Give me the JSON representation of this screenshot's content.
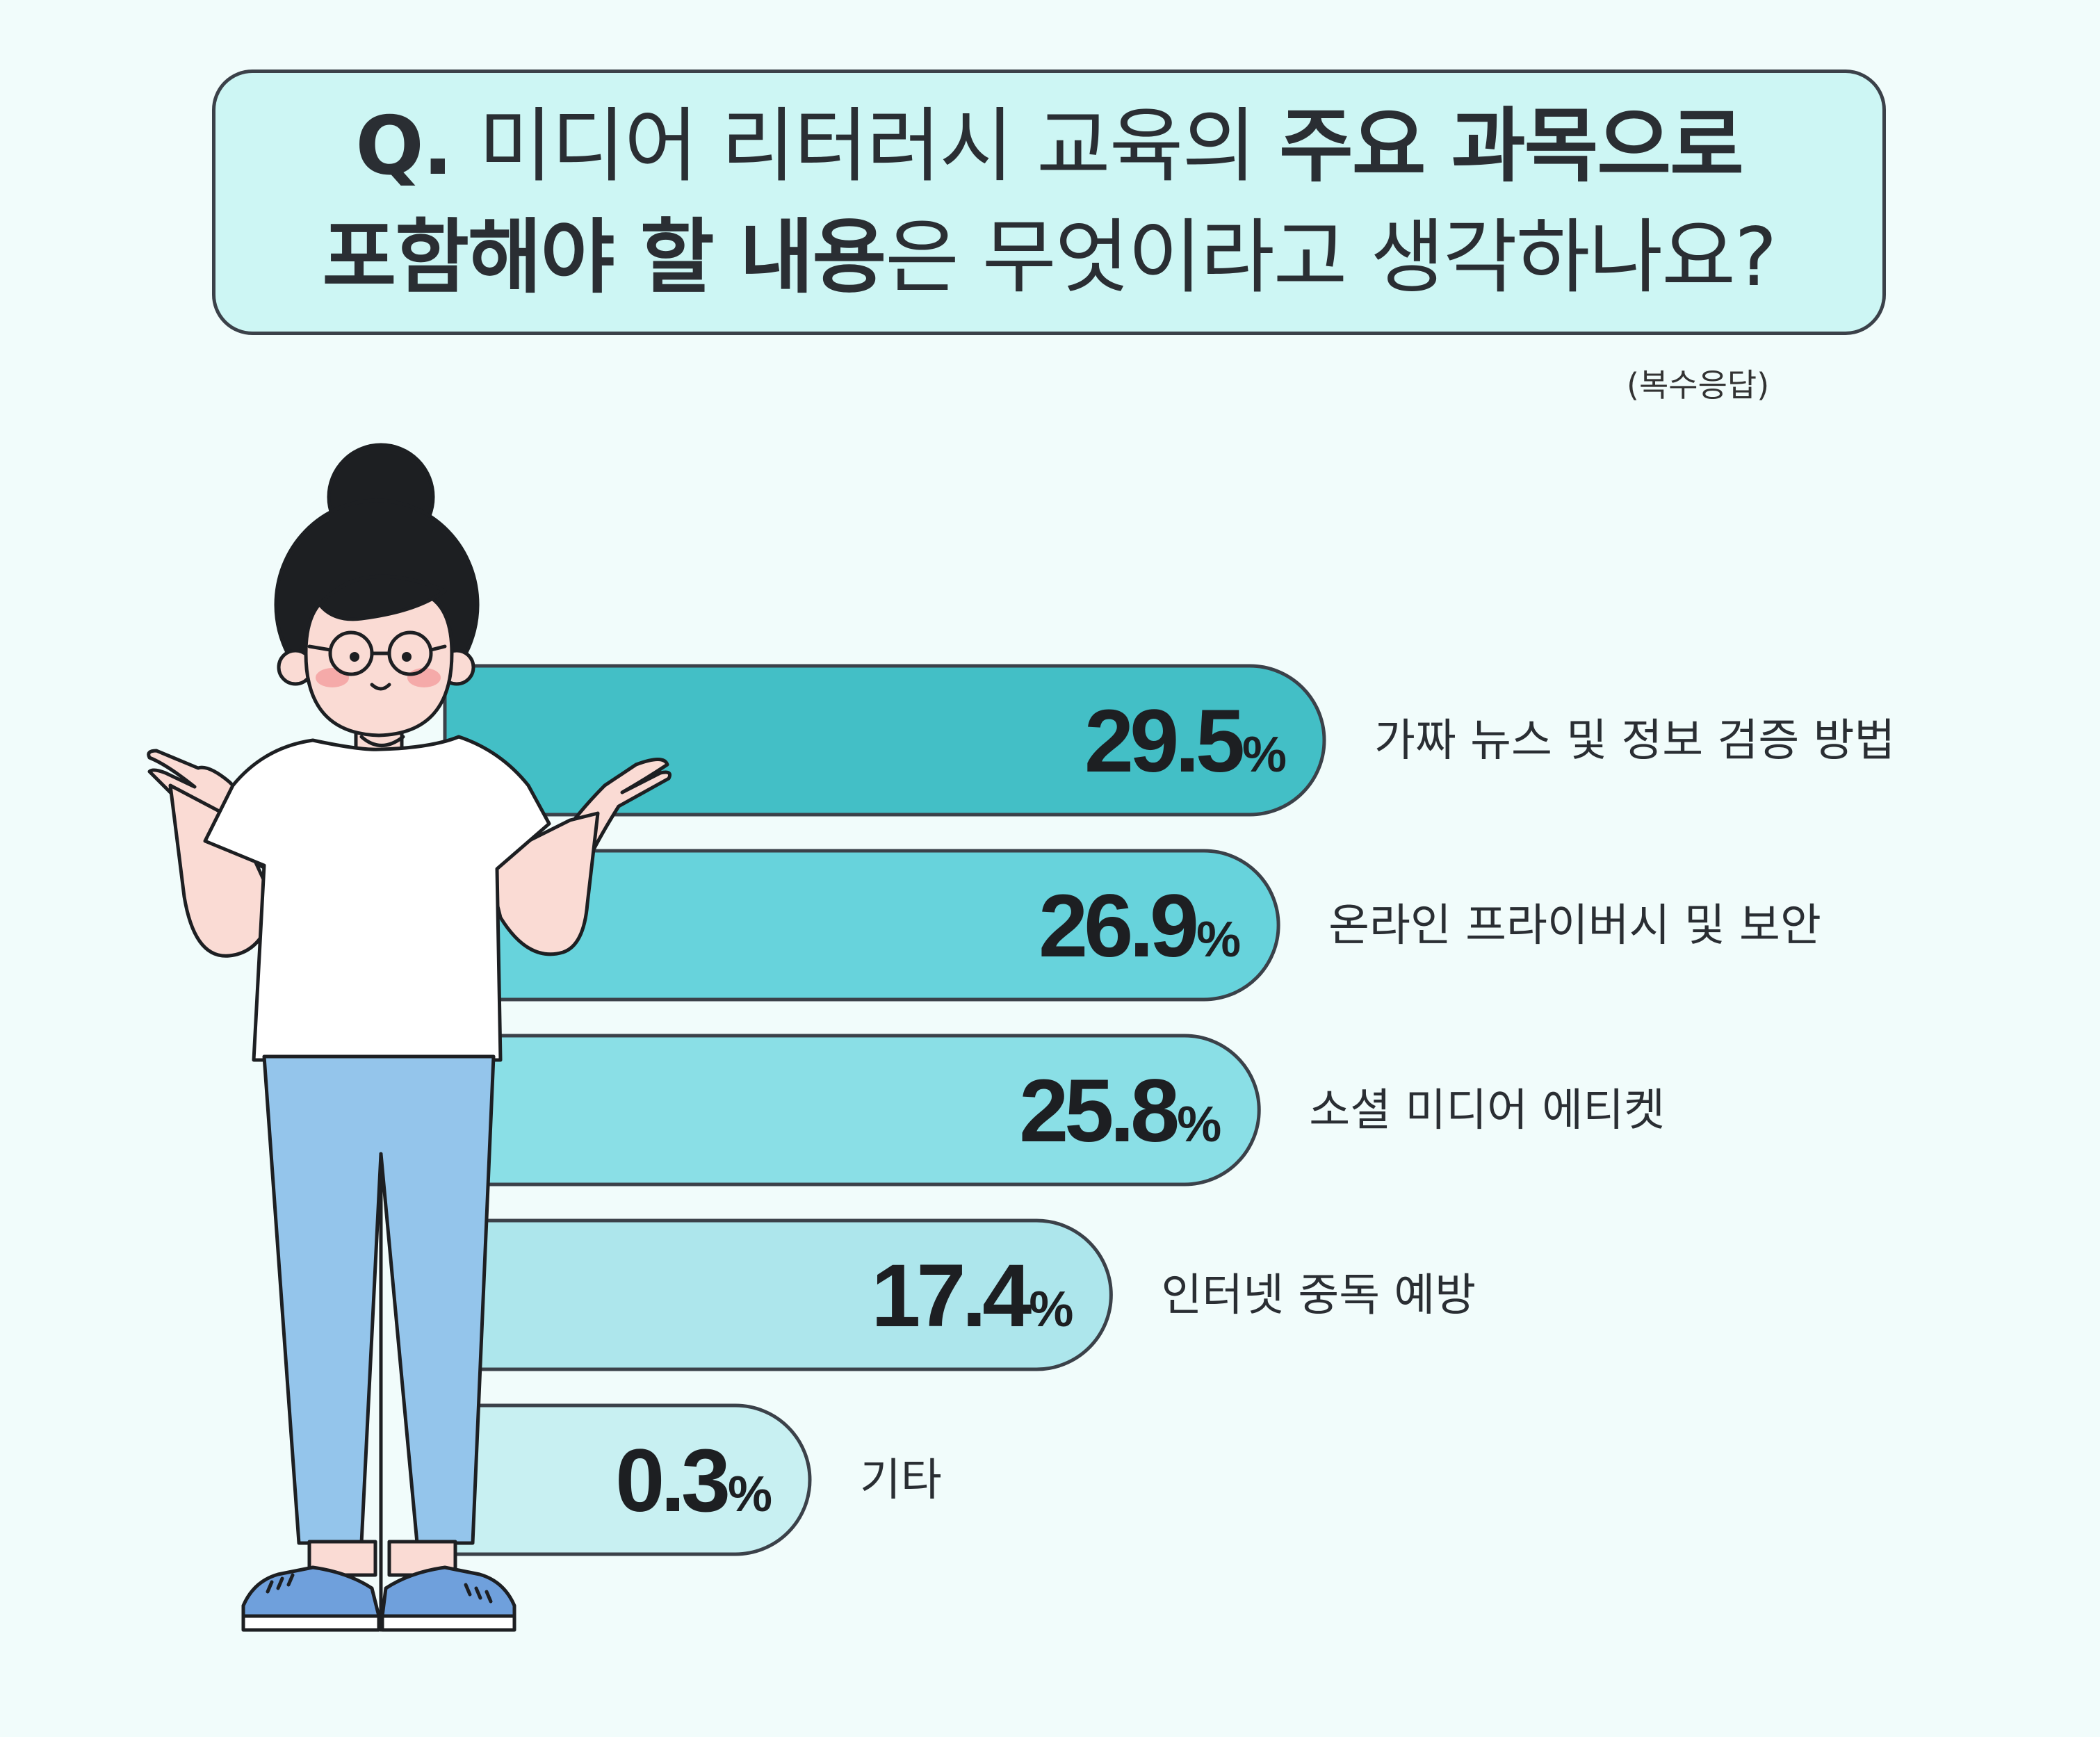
{
  "question": {
    "line1": [
      {
        "text": "Q. ",
        "bold": true
      },
      {
        "text": "미디어 리터러시 교육의 ",
        "bold": false
      },
      {
        "text": "주요 과목으로",
        "bold": true
      }
    ],
    "line2": [
      {
        "text": "포함해야 할 내용",
        "bold": true
      },
      {
        "text": "은 무엇이라고 생각하나요?",
        "bold": false
      }
    ]
  },
  "note": "(복수응답)",
  "chart_data": {
    "type": "bar",
    "orientation": "horizontal",
    "unit": "%",
    "categories": [
      "가짜 뉴스 및 정보 검증 방법",
      "온라인 프라이버시 및 보안",
      "소셜 미디어 에티켓",
      "인터넷 중독 예방",
      "기타"
    ],
    "values": [
      29.5,
      26.9,
      25.8,
      17.4,
      0.3
    ],
    "value_labels": [
      "29.5",
      "26.9",
      "25.8",
      "17.4",
      "0.3"
    ],
    "colors": [
      "#43bfc6",
      "#67d3dc",
      "#8adfe6",
      "#ade6ec",
      "#c8f0f2"
    ]
  },
  "colors": {
    "background": "#f1fcfb",
    "question_box": "#cdf6f4",
    "outline": "#3b4149"
  }
}
